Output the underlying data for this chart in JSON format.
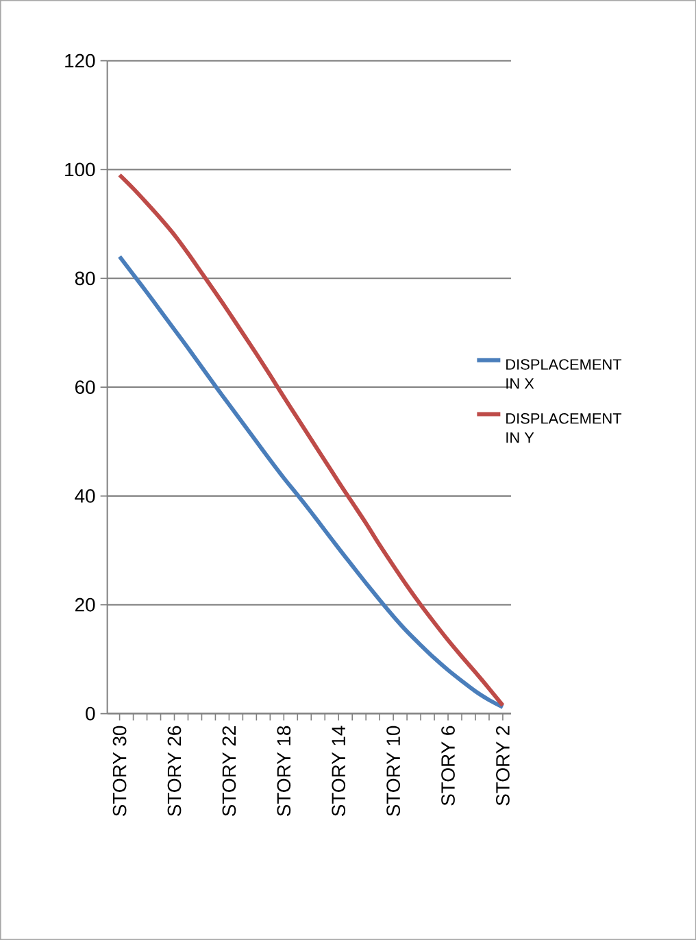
{
  "chart_data": {
    "type": "line",
    "categories": [
      "STORY 30",
      null,
      null,
      null,
      "STORY 26",
      null,
      null,
      null,
      "STORY 22",
      null,
      null,
      null,
      "STORY 18",
      null,
      null,
      null,
      "STORY 14",
      null,
      null,
      null,
      "STORY 10",
      null,
      null,
      null,
      "STORY 6",
      null,
      null,
      null,
      "STORY 2"
    ],
    "series": [
      {
        "name": "DISPLACEMENT IN X",
        "color": "#4a7ebb",
        "values": [
          84,
          80.7,
          77.4,
          74,
          70.6,
          67.2,
          63.7,
          60.2,
          56.8,
          53.4,
          50,
          46.6,
          43.3,
          40.2,
          37,
          33.7,
          30.4,
          27.2,
          24,
          20.9,
          17.9,
          15.1,
          12.6,
          10.2,
          8,
          6,
          4.1,
          2.5,
          1.2
        ]
      },
      {
        "name": "DISPLACEMENT IN Y",
        "color": "#be4b48",
        "values": [
          99,
          96.5,
          93.8,
          91,
          88,
          84.6,
          81,
          77.4,
          73.7,
          69.9,
          66.1,
          62.2,
          58.2,
          54.3,
          50.4,
          46.5,
          42.6,
          38.8,
          35,
          31,
          27.2,
          23.5,
          20,
          16.7,
          13.5,
          10.5,
          7.6,
          4.6,
          1.5
        ]
      }
    ],
    "ylim": [
      0,
      120
    ],
    "yticks": [
      0,
      20,
      40,
      60,
      80,
      100,
      120
    ],
    "grid": "y",
    "legend": "right",
    "marker": "none",
    "line_style": "solid"
  }
}
